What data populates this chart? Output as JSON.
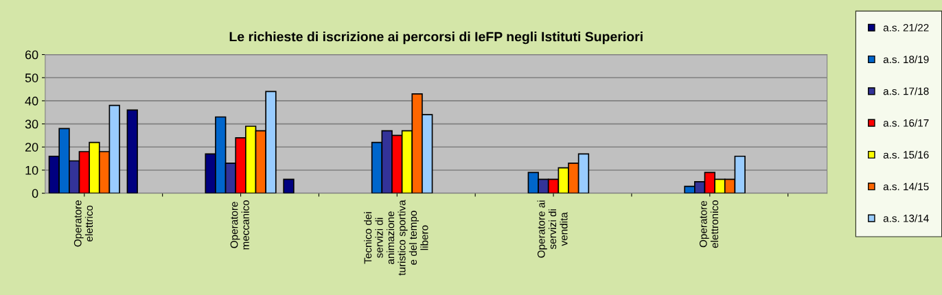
{
  "chart_data": {
    "type": "bar",
    "title": "Le richieste di iscrizione ai percorsi di IeFP negli Istituti Superiori",
    "categories": [
      "Operatore\nelettrico",
      null,
      "Operatore\nmeccanico",
      null,
      "Tecnico dei\nservizi di\nanimazione\nturistico sportiva\ne del tempo\nlibero",
      null,
      "Operatore ai\nservizi di\nvendita",
      null,
      "Operatore\nelettronico",
      null
    ],
    "series": [
      {
        "name": "a.s. 21/22",
        "color": "#000080",
        "values": [
          16,
          36,
          17,
          6,
          null,
          0,
          null,
          0,
          null,
          0
        ]
      },
      {
        "name": "a.s. 18/19",
        "color": "#0066cc",
        "values": [
          28,
          0,
          33,
          0,
          22,
          0,
          9,
          0,
          3,
          0
        ]
      },
      {
        "name": "a.s. 17/18",
        "color": "#333399",
        "values": [
          14,
          0,
          13,
          0,
          27,
          0,
          6,
          0,
          5,
          0
        ]
      },
      {
        "name": "a.s. 16/17",
        "color": "#ff0000",
        "values": [
          18,
          0,
          24,
          0,
          25,
          0,
          6,
          0,
          9,
          0
        ]
      },
      {
        "name": "a.s. 15/16",
        "color": "#ffff00",
        "values": [
          22,
          0,
          29,
          0,
          27,
          0,
          11,
          0,
          6,
          0
        ]
      },
      {
        "name": "a.s. 14/15",
        "color": "#ff6600",
        "values": [
          18,
          0,
          27,
          0,
          43,
          0,
          13,
          0,
          6,
          0
        ]
      },
      {
        "name": "a.s. 13/14",
        "color": "#99ccff",
        "values": [
          38,
          0,
          44,
          0,
          34,
          0,
          17,
          0,
          16,
          0
        ]
      }
    ],
    "ylim": [
      0,
      60
    ],
    "yticks": [
      0,
      10,
      20,
      30,
      40,
      50,
      60
    ],
    "grid": "y",
    "legend": "right"
  }
}
